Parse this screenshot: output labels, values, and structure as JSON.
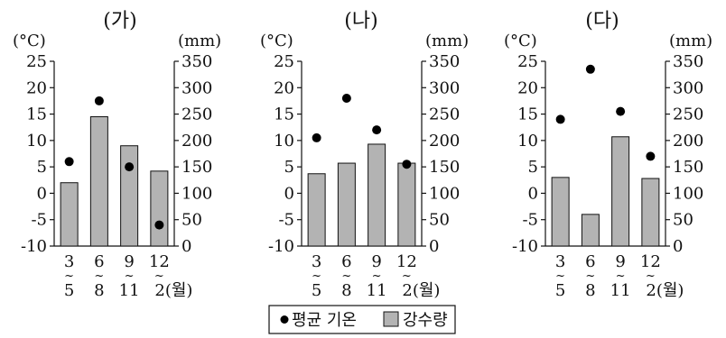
{
  "legend": {
    "temp_label": "평균 기온",
    "precip_label": "강수량"
  },
  "colors": {
    "bar_fill": "#b3b3b3",
    "dot_fill": "#000000"
  },
  "chart_data": [
    {
      "type": "bar",
      "title": "(가)",
      "left_unit": "(°C)",
      "right_unit": "(mm)",
      "left_ticks": [
        25,
        20,
        15,
        10,
        5,
        0,
        -5,
        -10
      ],
      "right_ticks": [
        350,
        300,
        250,
        200,
        150,
        100,
        50,
        0
      ],
      "left_range": [
        -10,
        25
      ],
      "right_range": [
        0,
        350
      ],
      "categories": [
        [
          "3",
          "~",
          "5"
        ],
        [
          "6",
          "~",
          "8"
        ],
        [
          "9",
          "~",
          "11"
        ],
        [
          "12",
          "~",
          "2(월)"
        ]
      ],
      "series": [
        {
          "name": "강수량",
          "kind": "bar",
          "axis": "right",
          "values": [
            120,
            245,
            190,
            142
          ]
        },
        {
          "name": "평균 기온",
          "kind": "dot",
          "axis": "left",
          "values": [
            6,
            17.5,
            5,
            -6
          ]
        }
      ]
    },
    {
      "type": "bar",
      "title": "(나)",
      "left_unit": "(°C)",
      "right_unit": "(mm)",
      "left_ticks": [
        25,
        20,
        15,
        10,
        5,
        0,
        -5,
        -10
      ],
      "right_ticks": [
        350,
        300,
        250,
        200,
        150,
        100,
        50,
        0
      ],
      "left_range": [
        -10,
        25
      ],
      "right_range": [
        0,
        350
      ],
      "categories": [
        [
          "3",
          "~",
          "5"
        ],
        [
          "6",
          "~",
          "8"
        ],
        [
          "9",
          "~",
          "11"
        ],
        [
          "12",
          "~",
          "2(월)"
        ]
      ],
      "series": [
        {
          "name": "강수량",
          "kind": "bar",
          "axis": "right",
          "values": [
            137,
            157,
            193,
            157
          ]
        },
        {
          "name": "평균 기온",
          "kind": "dot",
          "axis": "left",
          "values": [
            10.5,
            18,
            12,
            5.5
          ]
        }
      ]
    },
    {
      "type": "bar",
      "title": "(다)",
      "left_unit": "(°C)",
      "right_unit": "(mm)",
      "left_ticks": [
        25,
        20,
        15,
        10,
        5,
        0,
        -5,
        -10
      ],
      "right_ticks": [
        350,
        300,
        250,
        200,
        150,
        100,
        50,
        0
      ],
      "left_range": [
        -10,
        25
      ],
      "right_range": [
        0,
        350
      ],
      "categories": [
        [
          "3",
          "~",
          "5"
        ],
        [
          "6",
          "~",
          "8"
        ],
        [
          "9",
          "~",
          "11"
        ],
        [
          "12",
          "~",
          "2(월)"
        ]
      ],
      "series": [
        {
          "name": "강수량",
          "kind": "bar",
          "axis": "right",
          "values": [
            130,
            60,
            207,
            128
          ]
        },
        {
          "name": "평균 기온",
          "kind": "dot",
          "axis": "left",
          "values": [
            14,
            23.5,
            15.5,
            7
          ]
        }
      ]
    }
  ]
}
